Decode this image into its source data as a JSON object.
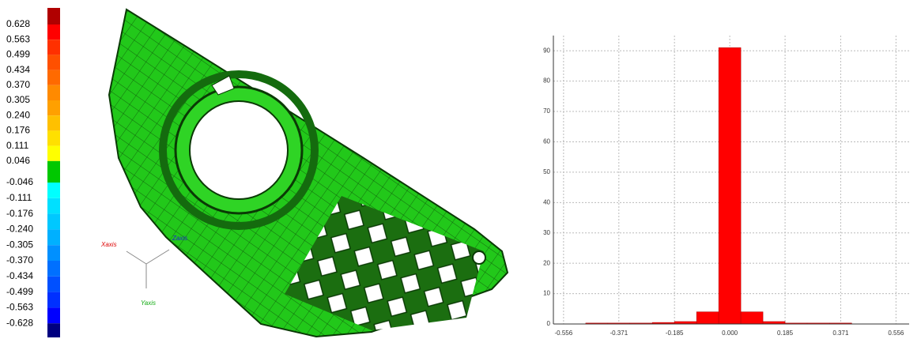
{
  "color_scale": {
    "labels": [
      "0.628",
      "0.563",
      "0.499",
      "0.434",
      "0.370",
      "0.305",
      "0.240",
      "0.176",
      "0.111",
      "0.046",
      "-0.046",
      "-0.111",
      "-0.176",
      "-0.240",
      "-0.305",
      "-0.370",
      "-0.434",
      "-0.499",
      "-0.563",
      "-0.628"
    ],
    "colors": [
      "#b00000",
      "#ff0000",
      "#ff3000",
      "#ff5000",
      "#ff6a00",
      "#ff8a00",
      "#ffa000",
      "#ffc000",
      "#ffe000",
      "#ffff00",
      "#00c800",
      "#00ffff",
      "#00e0ff",
      "#00c8ff",
      "#00b0ff",
      "#0090ff",
      "#0070ff",
      "#0050ff",
      "#0030ff",
      "#0000ff",
      "#000080"
    ]
  },
  "triad": {
    "x": "Xaxis",
    "y": "Yaxis",
    "z": "Zaxis"
  },
  "chart_data": {
    "type": "histogram",
    "color": "#ff0000",
    "grid": true,
    "bins": [
      -0.556,
      -0.482,
      -0.408,
      -0.334,
      -0.259,
      -0.185,
      -0.111,
      -0.037,
      0.037,
      0.111,
      0.185,
      0.259,
      0.334,
      0.408,
      0.482,
      0.556
    ],
    "values": [
      0,
      0.3,
      0.3,
      0.3,
      0.5,
      0.8,
      4,
      91,
      4,
      0.8,
      0.3,
      0.3,
      0.3,
      0,
      0
    ],
    "xlim": [
      -0.59,
      0.6
    ],
    "xticks": [
      -0.556,
      -0.371,
      -0.185,
      {
        "value": 0,
        "label": "0.000"
      },
      0.185,
      0.371,
      0.556
    ],
    "ylim": [
      0,
      95
    ],
    "yticks": [
      0,
      10,
      20,
      30,
      40,
      50,
      60,
      70,
      80,
      90
    ]
  }
}
